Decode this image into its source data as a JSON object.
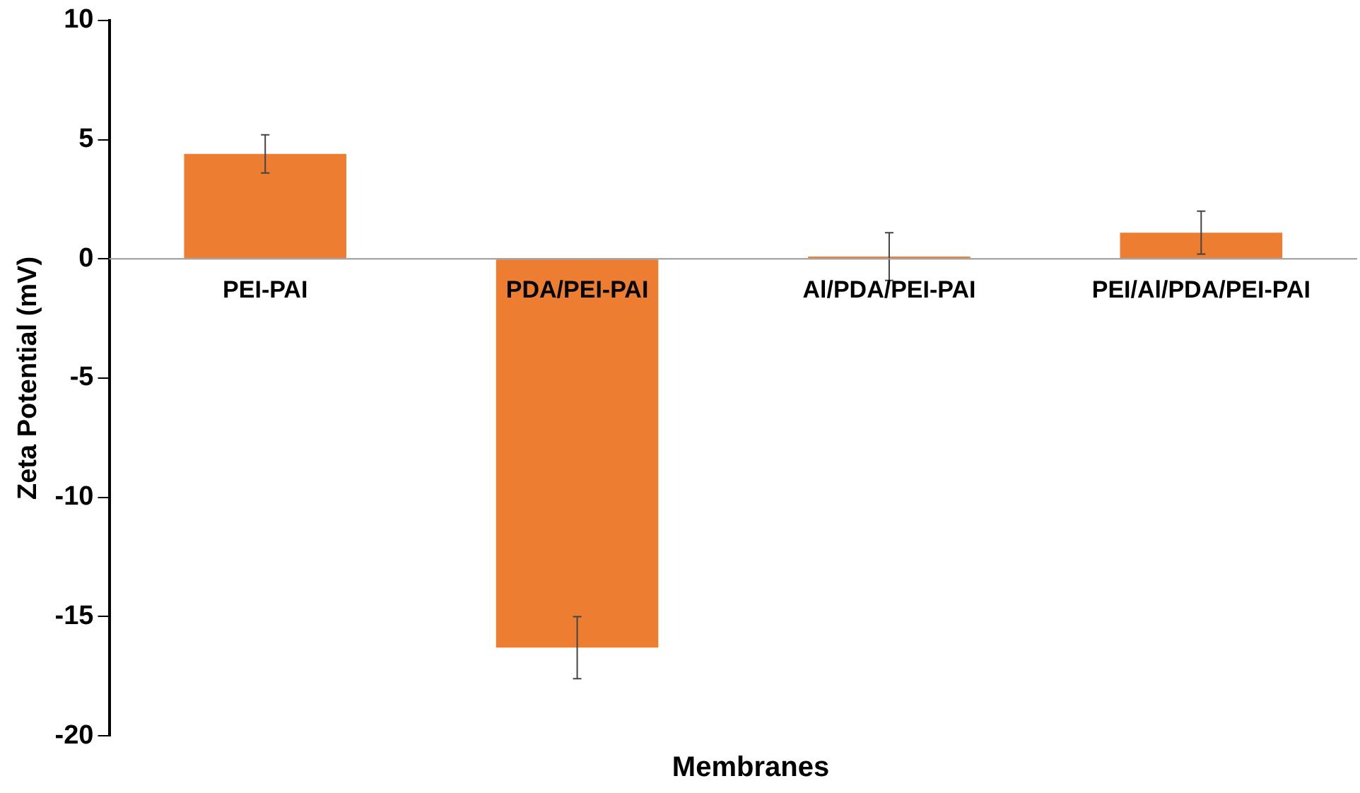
{
  "chart_data": {
    "type": "bar",
    "xlabel": "Membranes",
    "ylabel": "Zeta Potential (mV)",
    "categories": [
      "PEI-PAI",
      "PDA/PEI-PAI",
      "Al/PDA/PEI-PAI",
      "PEI/Al/PDA/PEI-PAI"
    ],
    "values": [
      4.4,
      -16.3,
      0.1,
      1.1
    ],
    "errors": [
      0.8,
      1.3,
      1.0,
      0.9
    ],
    "color": "#ed7d31",
    "ylim": [
      -20,
      10
    ],
    "yticks": [
      -20,
      -15,
      -10,
      -5,
      0,
      5,
      10
    ],
    "grid": false,
    "legend": false
  }
}
